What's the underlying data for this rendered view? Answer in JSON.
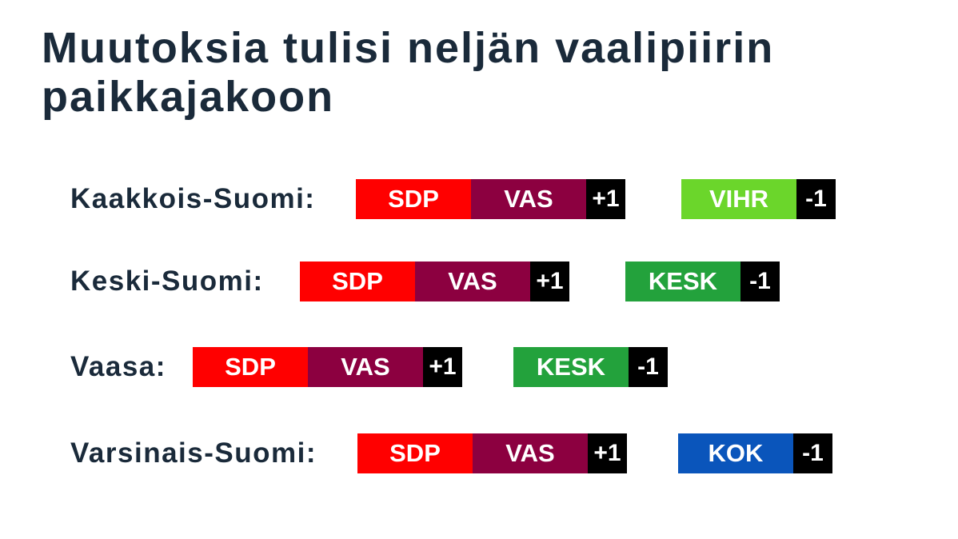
{
  "title": "Muutoksia tulisi neljän vaalipiirin paikkajakoon",
  "colors": {
    "SDP": "#ff0000",
    "VAS": "#8c0040",
    "VIHR": "#6bd62b",
    "KESK": "#23a23c",
    "KOK": "#0a55bb",
    "delta": "#000000",
    "text": "#1a2a3a"
  },
  "rows": [
    {
      "district": "Kaakkois-Suomi:",
      "gain": {
        "parties": [
          "SDP",
          "VAS"
        ],
        "change": "+1"
      },
      "loss": {
        "parties": [
          "VIHR"
        ],
        "change": "-1"
      }
    },
    {
      "district": "Keski-Suomi:",
      "gain": {
        "parties": [
          "SDP",
          "VAS"
        ],
        "change": "+1"
      },
      "loss": {
        "parties": [
          "KESK"
        ],
        "change": "-1"
      }
    },
    {
      "district": "Vaasa:",
      "gain": {
        "parties": [
          "SDP",
          "VAS"
        ],
        "change": "+1"
      },
      "loss": {
        "parties": [
          "KESK"
        ],
        "change": "-1"
      }
    },
    {
      "district": "Varsinais-Suomi:",
      "gain": {
        "parties": [
          "SDP",
          "VAS"
        ],
        "change": "+1"
      },
      "loss": {
        "parties": [
          "KOK"
        ],
        "change": "-1"
      }
    }
  ]
}
